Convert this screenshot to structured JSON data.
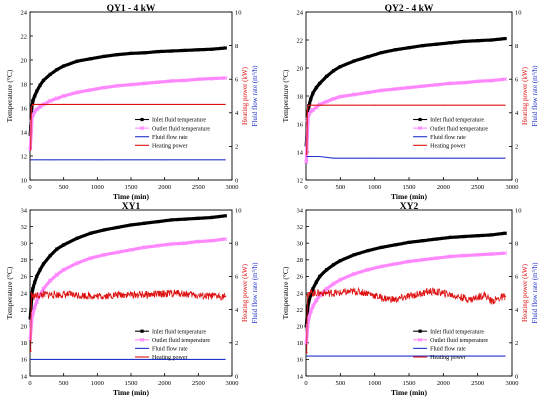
{
  "figure": {
    "colors": {
      "inlet": "#000000",
      "outlet": "#ff88ff",
      "flow": "#2233cc",
      "power": "#dd1111",
      "axis": "#000000",
      "label_blue": "#2233cc",
      "label_red": "#dd1111"
    }
  },
  "chart_data": [
    {
      "type": "line",
      "title": "QY1 - 4 kW",
      "xlabel": "Time (min)",
      "ylabel": "Temperature (°C)",
      "y2label": "Heating power (kW)",
      "y3label": "Fluid flow rate (m³/h)",
      "xlim": [
        0,
        3000
      ],
      "ylim": [
        10,
        24
      ],
      "y2lim": [
        0,
        10
      ],
      "xticks": [
        "0",
        "500",
        "1000",
        "1500",
        "2000",
        "2500",
        "3000"
      ],
      "yticks": [
        "10",
        "12",
        "14",
        "16",
        "18",
        "20",
        "22",
        "24"
      ],
      "y2ticks": [
        "0",
        "2",
        "4",
        "6",
        "8",
        "10"
      ],
      "legend": {
        "position": "center-right",
        "entries": [
          "Inlet fluid temperature",
          "Outlet fluid temperature",
          "Fluid flow rate",
          "Heating power"
        ]
      },
      "series": [
        {
          "name": "Inlet fluid temperature",
          "axis": "temp",
          "style": "marker",
          "x": [
            5,
            20,
            40,
            70,
            100,
            150,
            200,
            300,
            400,
            500,
            700,
            900,
            1100,
            1300,
            1500,
            1700,
            1900,
            2100,
            2300,
            2500,
            2700,
            2900
          ],
          "y": [
            13.8,
            15.8,
            16.6,
            17.0,
            17.4,
            17.9,
            18.3,
            18.8,
            19.2,
            19.5,
            19.9,
            20.1,
            20.3,
            20.45,
            20.55,
            20.6,
            20.7,
            20.75,
            20.8,
            20.85,
            20.9,
            21.0
          ]
        },
        {
          "name": "Outlet fluid temperature",
          "axis": "temp",
          "style": "marker",
          "x": [
            5,
            20,
            40,
            70,
            100,
            150,
            200,
            300,
            400,
            500,
            700,
            900,
            1100,
            1300,
            1500,
            1700,
            1900,
            2100,
            2300,
            2500,
            2700,
            2900
          ],
          "y": [
            12.6,
            14.8,
            15.4,
            15.7,
            15.9,
            16.1,
            16.3,
            16.6,
            16.8,
            17.0,
            17.3,
            17.5,
            17.7,
            17.85,
            17.95,
            18.05,
            18.15,
            18.25,
            18.3,
            18.4,
            18.45,
            18.5
          ]
        },
        {
          "name": "Fluid flow rate",
          "axis": "power",
          "style": "line",
          "x": [
            10,
            300,
            1000,
            2000,
            2900
          ],
          "y": [
            1.2,
            1.2,
            1.2,
            1.2,
            1.2
          ]
        },
        {
          "name": "Heating power",
          "axis": "power",
          "style": "line",
          "x": [
            10,
            20,
            30,
            40,
            300,
            1000,
            2000,
            2900
          ],
          "y": [
            1.8,
            4.3,
            4.4,
            4.5,
            4.5,
            4.5,
            4.5,
            4.5
          ]
        }
      ]
    },
    {
      "type": "line",
      "title": "QY2 - 4 kW",
      "xlabel": "Time (min)",
      "ylabel": "Temperature (°C)",
      "y2label": "Heating power (kW)",
      "y3label": "Fluid flow rate (m³/h)",
      "xlim": [
        0,
        3000
      ],
      "ylim": [
        12,
        24
      ],
      "y2lim": [
        0,
        10
      ],
      "xticks": [
        "0",
        "500",
        "1000",
        "1500",
        "2000",
        "2500",
        "3000"
      ],
      "yticks": [
        "12",
        "14",
        "16",
        "18",
        "20",
        "22",
        "24"
      ],
      "y2ticks": [
        "0",
        "2",
        "4",
        "6",
        "8",
        "10"
      ],
      "legend": {
        "position": "center-right",
        "entries": [
          "Inlet fluid temperature",
          "Outlet fluid temperature",
          "Fluid flow rate",
          "Heating power"
        ]
      },
      "series": [
        {
          "name": "Inlet fluid temperature",
          "axis": "temp",
          "style": "marker",
          "x": [
            5,
            20,
            40,
            70,
            100,
            150,
            200,
            300,
            400,
            500,
            700,
            900,
            1100,
            1300,
            1500,
            1700,
            1900,
            2100,
            2300,
            2500,
            2700,
            2900
          ],
          "y": [
            14.5,
            16.5,
            17.3,
            17.8,
            18.2,
            18.6,
            18.9,
            19.4,
            19.8,
            20.1,
            20.5,
            20.8,
            21.1,
            21.3,
            21.45,
            21.6,
            21.7,
            21.8,
            21.9,
            21.95,
            22.0,
            22.1
          ]
        },
        {
          "name": "Outlet fluid temperature",
          "axis": "temp",
          "style": "marker",
          "x": [
            5,
            20,
            40,
            70,
            100,
            150,
            200,
            300,
            400,
            500,
            700,
            900,
            1100,
            1300,
            1500,
            1700,
            1900,
            2100,
            2300,
            2500,
            2700,
            2900
          ],
          "y": [
            13.3,
            16.3,
            16.7,
            16.9,
            17.0,
            17.2,
            17.4,
            17.6,
            17.8,
            17.95,
            18.1,
            18.25,
            18.4,
            18.5,
            18.6,
            18.7,
            18.8,
            18.9,
            18.95,
            19.05,
            19.1,
            19.2
          ]
        },
        {
          "name": "Fluid flow rate",
          "axis": "power",
          "style": "line",
          "x": [
            10,
            200,
            400,
            1000,
            2000,
            2900
          ],
          "y": [
            1.4,
            1.4,
            1.3,
            1.3,
            1.3,
            1.3
          ]
        },
        {
          "name": "Heating power",
          "axis": "power",
          "style": "line",
          "x": [
            10,
            20,
            30,
            40,
            300,
            1000,
            2000,
            2900
          ],
          "y": [
            1.5,
            4.2,
            4.4,
            4.45,
            4.45,
            4.45,
            4.45,
            4.45
          ]
        }
      ]
    },
    {
      "type": "line",
      "title": "XY1",
      "xlabel": "Time (min)",
      "ylabel": "Temperature (°C)",
      "y2label": "Heating power (kW)",
      "y3label": "Fluid flow rate (m³/h)",
      "xlim": [
        0,
        3000
      ],
      "ylim": [
        14,
        34
      ],
      "y2lim": [
        0,
        10
      ],
      "xticks": [
        "0",
        "500",
        "1000",
        "1500",
        "2000",
        "2500",
        "3000"
      ],
      "yticks": [
        "14",
        "16",
        "18",
        "20",
        "22",
        "24",
        "26",
        "28",
        "30",
        "32",
        "34"
      ],
      "y2ticks": [
        "0",
        "2",
        "4",
        "6",
        "8",
        "10"
      ],
      "legend": {
        "position": "bottom-right",
        "entries": [
          "Inlet fluid temperature",
          "Outlet fluid temperature",
          "Fluid flow rate",
          "Heating power"
        ]
      },
      "series": [
        {
          "name": "Inlet fluid temperature",
          "axis": "temp",
          "style": "marker",
          "x": [
            5,
            20,
            40,
            70,
            100,
            150,
            200,
            300,
            400,
            500,
            700,
            900,
            1100,
            1300,
            1500,
            1700,
            1900,
            2100,
            2300,
            2500,
            2700,
            2900
          ],
          "y": [
            21.0,
            23.5,
            24.5,
            25.3,
            26.0,
            26.8,
            27.5,
            28.5,
            29.3,
            29.8,
            30.6,
            31.2,
            31.6,
            31.9,
            32.2,
            32.4,
            32.6,
            32.8,
            32.9,
            33.0,
            33.1,
            33.3
          ]
        },
        {
          "name": "Outlet fluid temperature",
          "axis": "temp",
          "style": "marker",
          "x": [
            5,
            20,
            40,
            70,
            100,
            150,
            200,
            300,
            400,
            500,
            700,
            900,
            1100,
            1300,
            1500,
            1700,
            1900,
            2100,
            2300,
            2500,
            2700,
            2900
          ],
          "y": [
            18.5,
            20.5,
            21.5,
            22.3,
            23.0,
            23.8,
            24.5,
            25.5,
            26.2,
            26.8,
            27.6,
            28.2,
            28.6,
            28.9,
            29.2,
            29.5,
            29.7,
            29.9,
            30.0,
            30.2,
            30.3,
            30.5
          ]
        },
        {
          "name": "Fluid flow rate",
          "axis": "power",
          "style": "line",
          "x": [
            10,
            500,
            1500,
            2900
          ],
          "y": [
            1.0,
            1.0,
            1.0,
            1.0
          ]
        },
        {
          "name": "Heating power",
          "axis": "power",
          "style": "noisy",
          "x": [
            10,
            20,
            40,
            200,
            600,
            1000,
            1400,
            1800,
            2200,
            2600,
            2900
          ],
          "y": [
            1.5,
            5.0,
            4.8,
            4.9,
            4.9,
            4.8,
            4.9,
            4.9,
            5.0,
            4.8,
            4.8
          ]
        }
      ]
    },
    {
      "type": "line",
      "title": "XY2",
      "xlabel": "Time (min)",
      "ylabel": "Temperature (°C)",
      "y2label": "Heating power (kW)",
      "y3label": "Fluid flow rate (m³/h)",
      "xlim": [
        0,
        3000
      ],
      "ylim": [
        14,
        34
      ],
      "y2lim": [
        0,
        10
      ],
      "xticks": [
        "0",
        "500",
        "1000",
        "1500",
        "2000",
        "2500",
        "3000"
      ],
      "yticks": [
        "14",
        "16",
        "18",
        "20",
        "22",
        "24",
        "26",
        "28",
        "30",
        "32",
        "34"
      ],
      "y2ticks": [
        "0",
        "2",
        "4",
        "6",
        "8",
        "10"
      ],
      "legend": {
        "position": "bottom-right",
        "entries": [
          "Inlet fluid temperature",
          "Outlet fluid temperature",
          "Fluid flow rate",
          "Heating power"
        ]
      },
      "series": [
        {
          "name": "Inlet fluid temperature",
          "axis": "temp",
          "style": "marker",
          "x": [
            5,
            20,
            40,
            70,
            100,
            150,
            200,
            300,
            400,
            500,
            700,
            900,
            1100,
            1300,
            1500,
            1700,
            1900,
            2100,
            2300,
            2500,
            2700,
            2900
          ],
          "y": [
            20.0,
            22.0,
            23.0,
            23.8,
            24.5,
            25.3,
            26.0,
            26.8,
            27.4,
            27.9,
            28.6,
            29.1,
            29.5,
            29.8,
            30.1,
            30.3,
            30.5,
            30.7,
            30.8,
            30.9,
            31.0,
            31.2
          ]
        },
        {
          "name": "Outlet fluid temperature",
          "axis": "temp",
          "style": "marker",
          "x": [
            5,
            20,
            40,
            70,
            100,
            150,
            200,
            300,
            400,
            500,
            700,
            900,
            1100,
            1300,
            1500,
            1700,
            1900,
            2100,
            2300,
            2500,
            2700,
            2900
          ],
          "y": [
            18.0,
            20.0,
            21.0,
            21.8,
            22.4,
            23.1,
            23.7,
            24.5,
            25.1,
            25.6,
            26.3,
            26.8,
            27.2,
            27.5,
            27.8,
            28.0,
            28.2,
            28.4,
            28.5,
            28.6,
            28.7,
            28.8
          ]
        },
        {
          "name": "Fluid flow rate",
          "axis": "power",
          "style": "line",
          "x": [
            10,
            500,
            1500,
            2900
          ],
          "y": [
            1.2,
            1.2,
            1.2,
            1.2
          ]
        },
        {
          "name": "Heating power",
          "axis": "power",
          "style": "noisy",
          "x": [
            10,
            20,
            40,
            200,
            500,
            700,
            900,
            1100,
            1300,
            1500,
            1700,
            1800,
            2000,
            2200,
            2400,
            2600,
            2700,
            2900
          ],
          "y": [
            1.4,
            4.9,
            5.0,
            5.0,
            5.0,
            5.1,
            5.0,
            4.7,
            4.6,
            4.8,
            5.0,
            5.1,
            5.0,
            4.8,
            4.6,
            4.9,
            4.5,
            4.8
          ]
        }
      ]
    }
  ]
}
